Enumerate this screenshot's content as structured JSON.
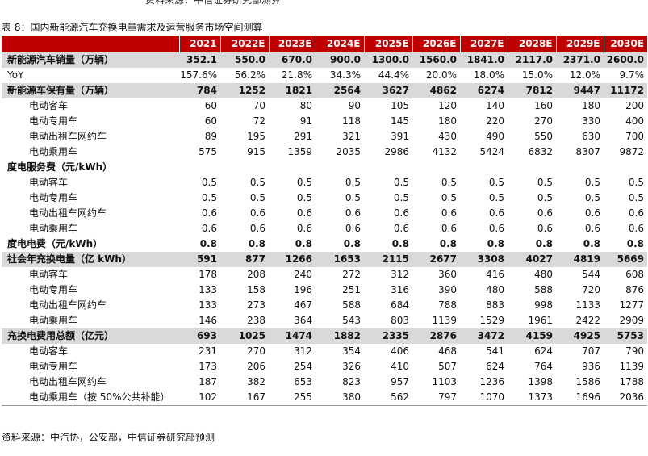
{
  "top_cut_text": "资料来源：中信证券研究部测算",
  "title": "表 8：国内新能源汽车充换电量需求及运营服务市场空间测算",
  "headers": [
    "",
    "2021",
    "2022E",
    "2023E",
    "2024E",
    "2025E",
    "2026E",
    "2027E",
    "2028E",
    "2029E",
    "2030E"
  ],
  "rows": [
    {
      "label": "新能源汽车销量（万辆）",
      "level": "main",
      "bold": true,
      "shade": true,
      "values": [
        "352.1",
        "550.0",
        "670.0",
        "900.0",
        "1300.0",
        "1560.0",
        "1841.0",
        "2117.0",
        "2371.0",
        "2600.0"
      ]
    },
    {
      "label": "YoY",
      "level": "main",
      "bold": false,
      "shade": false,
      "values": [
        "157.6%",
        "56.2%",
        "21.8%",
        "34.3%",
        "44.4%",
        "20.0%",
        "18.0%",
        "15.0%",
        "12.0%",
        "9.7%"
      ]
    },
    {
      "label": "新能源车保有量（万辆）",
      "level": "main",
      "bold": true,
      "shade": true,
      "values": [
        "784",
        "1252",
        "1821",
        "2564",
        "3627",
        "4862",
        "6274",
        "7812",
        "9447",
        "11172"
      ]
    },
    {
      "label": "电动客车",
      "level": "sub",
      "bold": false,
      "shade": false,
      "values": [
        "60",
        "70",
        "80",
        "90",
        "105",
        "120",
        "140",
        "160",
        "180",
        "200"
      ]
    },
    {
      "label": "电动专用车",
      "level": "sub",
      "bold": false,
      "shade": false,
      "values": [
        "60",
        "72",
        "91",
        "118",
        "145",
        "180",
        "220",
        "270",
        "330",
        "400"
      ]
    },
    {
      "label": "电动出租车网约车",
      "level": "sub",
      "bold": false,
      "shade": false,
      "values": [
        "89",
        "195",
        "291",
        "321",
        "391",
        "430",
        "490",
        "550",
        "630",
        "700"
      ]
    },
    {
      "label": "电动乘用车",
      "level": "sub",
      "bold": false,
      "shade": false,
      "values": [
        "575",
        "915",
        "1359",
        "2035",
        "2986",
        "4132",
        "5424",
        "6832",
        "8307",
        "9872"
      ]
    },
    {
      "label": "度电服务费（元/kWh）",
      "level": "main",
      "bold": true,
      "shade": false,
      "values": [
        "",
        "",
        "",
        "",
        "",
        "",
        "",
        "",
        "",
        ""
      ]
    },
    {
      "label": "电动客车",
      "level": "sub",
      "bold": false,
      "shade": false,
      "values": [
        "0.5",
        "0.5",
        "0.5",
        "0.5",
        "0.5",
        "0.5",
        "0.5",
        "0.5",
        "0.5",
        "0.5"
      ]
    },
    {
      "label": "电动专用车",
      "level": "sub",
      "bold": false,
      "shade": false,
      "values": [
        "0.5",
        "0.5",
        "0.5",
        "0.5",
        "0.5",
        "0.5",
        "0.5",
        "0.5",
        "0.5",
        "0.5"
      ]
    },
    {
      "label": "电动出租车网约车",
      "level": "sub",
      "bold": false,
      "shade": false,
      "values": [
        "0.6",
        "0.6",
        "0.6",
        "0.6",
        "0.6",
        "0.6",
        "0.6",
        "0.6",
        "0.6",
        "0.6"
      ]
    },
    {
      "label": "电动乘用车",
      "level": "sub",
      "bold": false,
      "shade": false,
      "values": [
        "0.6",
        "0.6",
        "0.6",
        "0.6",
        "0.6",
        "0.6",
        "0.6",
        "0.6",
        "0.6",
        "0.6"
      ]
    },
    {
      "label": "度电电费（元/kWh）",
      "level": "main",
      "bold": true,
      "shade": false,
      "values": [
        "0.8",
        "0.8",
        "0.8",
        "0.8",
        "0.8",
        "0.8",
        "0.8",
        "0.8",
        "0.8",
        "0.8"
      ]
    },
    {
      "label": "社会年充换电量（亿 kWh）",
      "level": "main",
      "bold": true,
      "shade": true,
      "values": [
        "591",
        "877",
        "1266",
        "1653",
        "2115",
        "2677",
        "3308",
        "4027",
        "4819",
        "5669"
      ]
    },
    {
      "label": "电动客车",
      "level": "sub",
      "bold": false,
      "shade": false,
      "values": [
        "178",
        "208",
        "240",
        "272",
        "312",
        "360",
        "416",
        "480",
        "544",
        "608"
      ]
    },
    {
      "label": "电动专用车",
      "level": "sub",
      "bold": false,
      "shade": false,
      "values": [
        "133",
        "158",
        "196",
        "251",
        "316",
        "390",
        "480",
        "588",
        "720",
        "876"
      ]
    },
    {
      "label": "电动出租车网约车",
      "level": "sub",
      "bold": false,
      "shade": false,
      "values": [
        "133",
        "273",
        "467",
        "588",
        "684",
        "788",
        "883",
        "998",
        "1133",
        "1277"
      ]
    },
    {
      "label": "电动乘用车",
      "level": "sub",
      "bold": false,
      "shade": false,
      "values": [
        "146",
        "238",
        "364",
        "543",
        "803",
        "1139",
        "1529",
        "1961",
        "2422",
        "2909"
      ]
    },
    {
      "label": "充换电费用总额（亿元）",
      "level": "main",
      "bold": true,
      "shade": true,
      "values": [
        "693",
        "1025",
        "1474",
        "1882",
        "2335",
        "2876",
        "3472",
        "4159",
        "4925",
        "5753"
      ]
    },
    {
      "label": "电动客车",
      "level": "sub",
      "bold": false,
      "shade": false,
      "values": [
        "231",
        "270",
        "312",
        "354",
        "406",
        "468",
        "541",
        "624",
        "707",
        "790"
      ]
    },
    {
      "label": "电动专用车",
      "level": "sub",
      "bold": false,
      "shade": false,
      "values": [
        "173",
        "206",
        "254",
        "326",
        "410",
        "507",
        "624",
        "764",
        "936",
        "1139"
      ]
    },
    {
      "label": "电动出租车网约车",
      "level": "sub",
      "bold": false,
      "shade": false,
      "values": [
        "187",
        "382",
        "653",
        "823",
        "957",
        "1103",
        "1236",
        "1398",
        "1586",
        "1788"
      ]
    },
    {
      "label": "电动乘用车（按 50%公共补能）",
      "level": "sub",
      "bold": false,
      "shade": false,
      "values": [
        "102",
        "167",
        "255",
        "380",
        "562",
        "797",
        "1070",
        "1373",
        "1696",
        "2036"
      ]
    }
  ],
  "source": "资料来源：中汽协，公安部，中信证券研究部预测",
  "colors": {
    "header_bg": "#c00000",
    "header_text": "#ffffff",
    "shade": "#d9d9d9"
  }
}
